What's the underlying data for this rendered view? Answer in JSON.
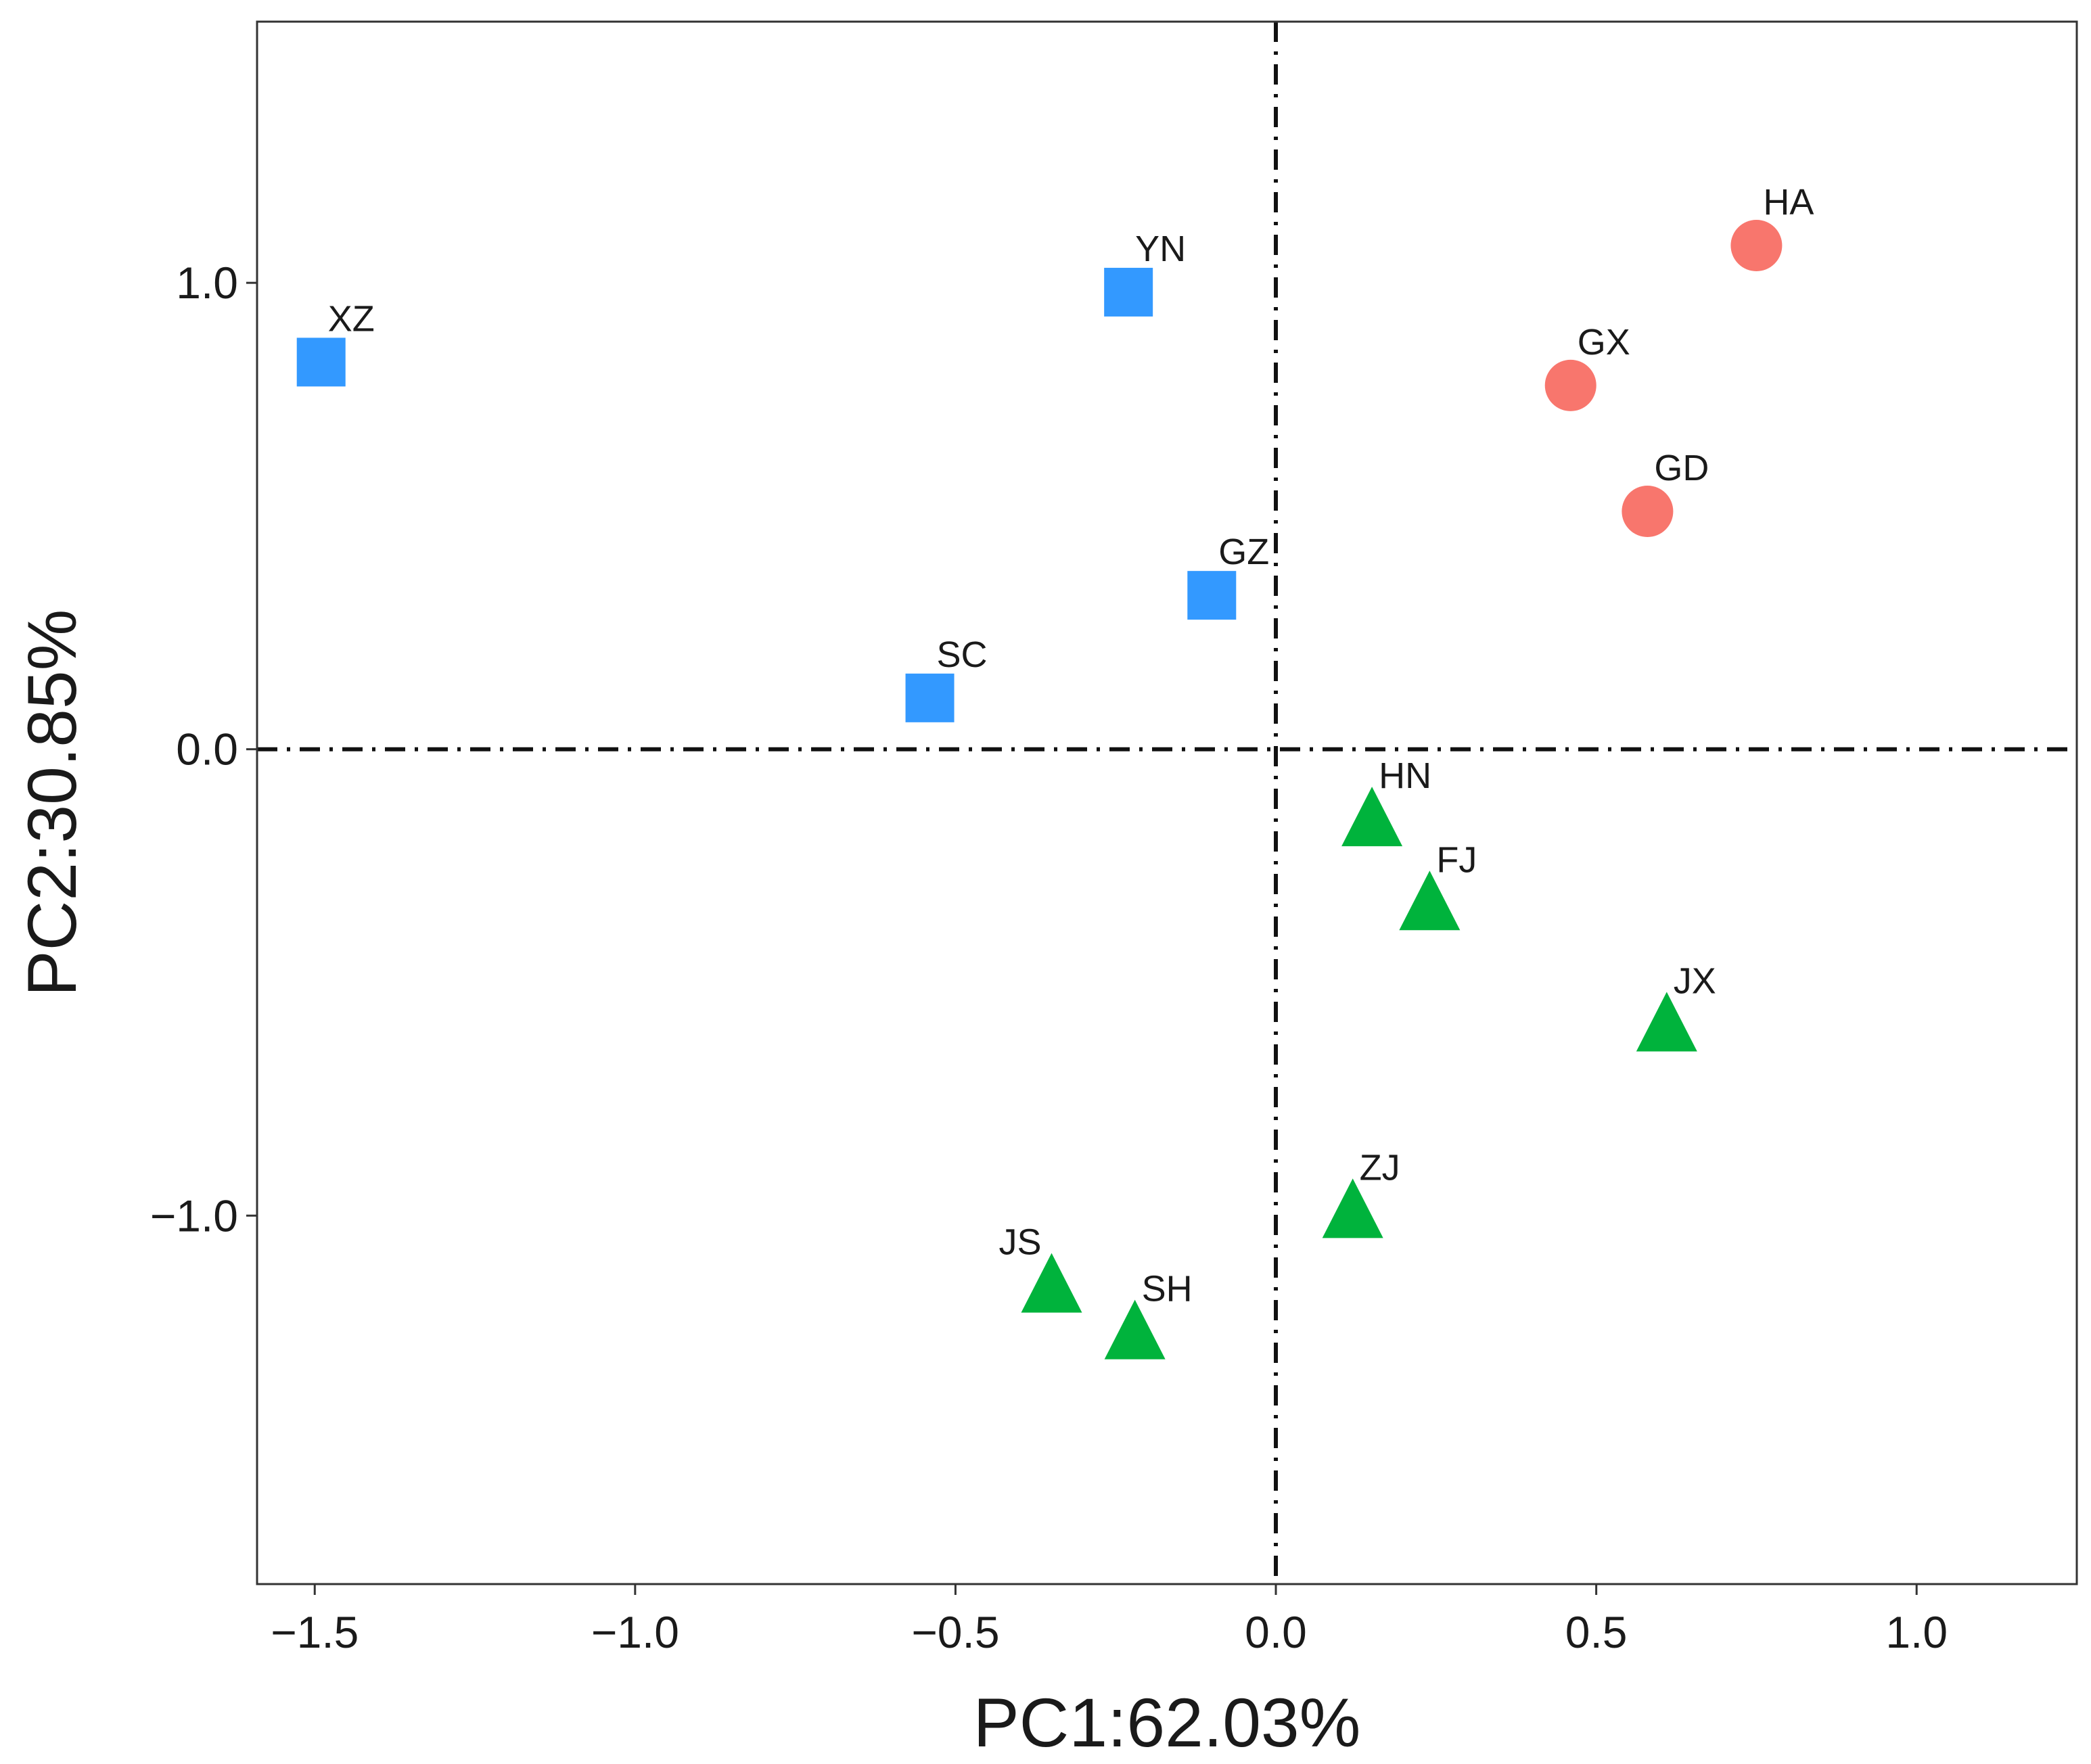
{
  "chart_data": {
    "type": "scatter",
    "title": "",
    "xlabel": "PC1:62.03%",
    "ylabel": "PC2:30.85%",
    "xlim": [
      -1.59,
      1.25
    ],
    "ylim": [
      -1.79,
      1.56
    ],
    "xticks": [
      -1.5,
      -1.0,
      -0.5,
      0.0,
      0.5,
      1.0
    ],
    "yticks": [
      -1.0,
      0.0,
      1.0
    ],
    "xtick_labels": [
      "−1.5",
      "−1.0",
      "−0.5",
      "0.0",
      "0.5",
      "1.0"
    ],
    "ytick_labels": [
      "−1.0",
      "0.0",
      "1.0"
    ],
    "reference_lines": {
      "x": 0.0,
      "y": 0.0,
      "style": "dash-dot"
    },
    "grid": false,
    "legend": "none",
    "series": [
      {
        "name": "group-circle",
        "marker": "circle",
        "color": "#F8766D",
        "points": [
          {
            "label": "HA",
            "x": 0.75,
            "y": 1.08
          },
          {
            "label": "GX",
            "x": 0.46,
            "y": 0.78
          },
          {
            "label": "GD",
            "x": 0.58,
            "y": 0.51
          }
        ]
      },
      {
        "name": "group-square",
        "marker": "square",
        "color": "#3399FF",
        "points": [
          {
            "label": "XZ",
            "x": -1.49,
            "y": 0.83
          },
          {
            "label": "YN",
            "x": -0.23,
            "y": 0.98
          },
          {
            "label": "GZ",
            "x": -0.1,
            "y": 0.33
          },
          {
            "label": "SC",
            "x": -0.54,
            "y": 0.11
          }
        ]
      },
      {
        "name": "group-triangle",
        "marker": "triangle",
        "color": "#00B33C",
        "points": [
          {
            "label": "HN",
            "x": 0.15,
            "y": -0.15
          },
          {
            "label": "FJ",
            "x": 0.24,
            "y": -0.33
          },
          {
            "label": "JX",
            "x": 0.61,
            "y": -0.59
          },
          {
            "label": "ZJ",
            "x": 0.12,
            "y": -0.99
          },
          {
            "label": "JS",
            "x": -0.35,
            "y": -1.15
          },
          {
            "label": "SH",
            "x": -0.22,
            "y": -1.25
          }
        ]
      }
    ]
  }
}
